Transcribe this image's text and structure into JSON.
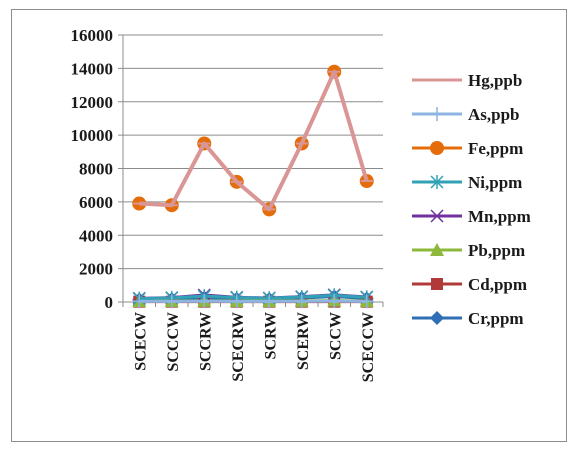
{
  "chart_data": {
    "type": "line",
    "categories": [
      "SCECW",
      "SCCCW",
      "SCCRW",
      "SCECRW",
      "SCRW",
      "SCERW",
      "SCCW",
      "SCECCW"
    ],
    "ylim": [
      0,
      16000
    ],
    "yticks": [
      0,
      2000,
      4000,
      6000,
      8000,
      10000,
      12000,
      14000,
      16000
    ],
    "grid": "horizontal",
    "legend_position": "right",
    "series": [
      {
        "name": "Hg,ppb",
        "marker": "dash",
        "color": "#d99694",
        "values": [
          5900,
          5800,
          9500,
          7200,
          5550,
          9500,
          13800,
          7250
        ]
      },
      {
        "name": "As,ppb",
        "marker": "plus",
        "color": "#8eb4e3",
        "values": [
          40,
          40,
          45,
          40,
          40,
          45,
          55,
          40
        ]
      },
      {
        "name": "Fe,ppm",
        "marker": "circle",
        "color": "#e46c0a",
        "values": [
          5900,
          5800,
          9500,
          7200,
          5550,
          9500,
          13800,
          7250
        ]
      },
      {
        "name": "Ni,ppm",
        "marker": "asterisk",
        "color": "#31a2b6",
        "values": [
          200,
          250,
          350,
          260,
          230,
          300,
          400,
          280
        ]
      },
      {
        "name": "Mn,ppm",
        "marker": "x",
        "color": "#7030a0",
        "values": [
          220,
          260,
          420,
          280,
          240,
          320,
          430,
          300
        ]
      },
      {
        "name": "Pb,ppm",
        "marker": "triangle",
        "color": "#8db83a",
        "values": [
          60,
          60,
          70,
          60,
          60,
          70,
          80,
          60
        ]
      },
      {
        "name": "Cd,ppm",
        "marker": "square",
        "color": "#b03a3a",
        "values": [
          20,
          20,
          20,
          20,
          20,
          20,
          20,
          20
        ]
      },
      {
        "name": "Cr,ppm",
        "marker": "diamond",
        "color": "#2e6fb5",
        "values": [
          150,
          170,
          260,
          190,
          180,
          240,
          330,
          210
        ]
      }
    ]
  }
}
